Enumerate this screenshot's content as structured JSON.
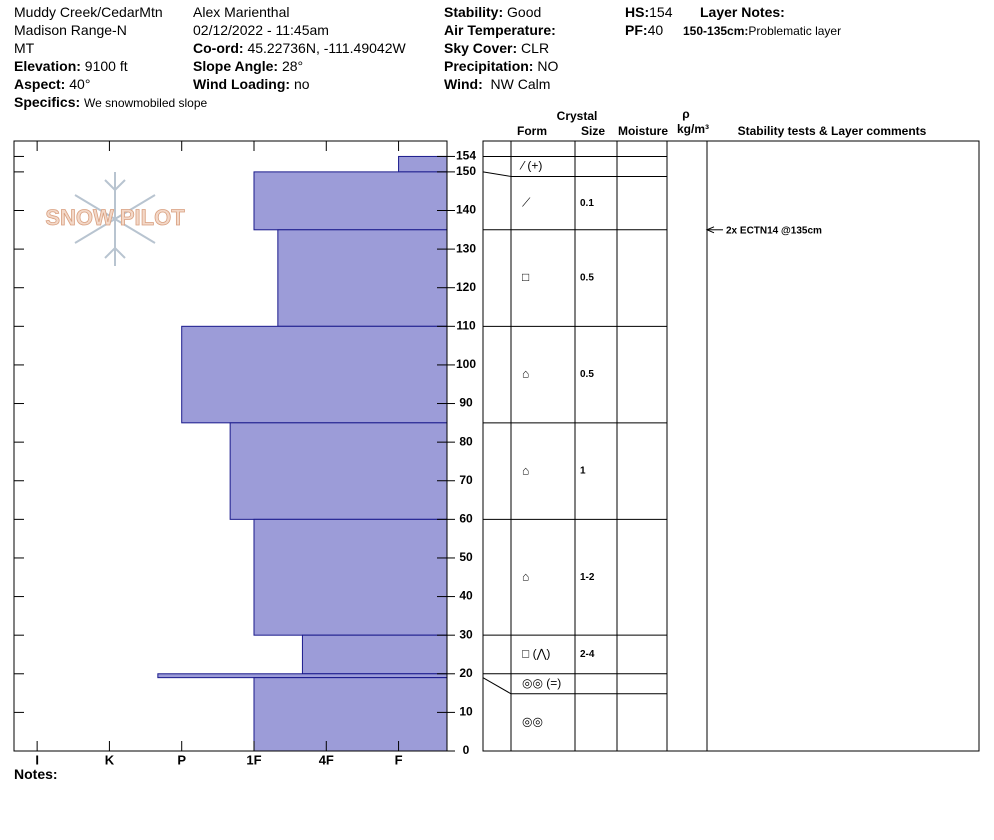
{
  "header": {
    "location": "Muddy Creek/CedarMtn",
    "range": "Madison Range-N",
    "state": "MT",
    "elevation": {
      "label": "Elevation:",
      "value": "9100 ft"
    },
    "aspect": {
      "label": "Aspect:",
      "value": "40°"
    },
    "specifics": {
      "label": "Specifics:",
      "value": "We snowmobiled slope"
    },
    "observer": "Alex Marienthal",
    "datetime": "02/12/2022 - 11:45am",
    "coord": {
      "label": "Co-ord:",
      "value": "45.22736N, -111.49042W"
    },
    "slope_angle": {
      "label": "Slope Angle:",
      "value": "28°"
    },
    "wind_loading": {
      "label": "Wind Loading:",
      "value": "no"
    },
    "stability": {
      "label": "Stability:",
      "value": "Good"
    },
    "air_temperature": {
      "label": "Air Temperature:"
    },
    "sky_cover": {
      "label": "Sky Cover:",
      "value": "CLR"
    },
    "precipitation": {
      "label": "Precipitation:",
      "value": "NO"
    },
    "wind": {
      "label": "Wind:",
      "value": "NW Calm"
    },
    "hs": {
      "label": "HS:",
      "value": "154"
    },
    "pf": {
      "label": "PF:",
      "value": "40"
    },
    "layer_notes": {
      "label": "Layer Notes:",
      "range": "150-135cm:",
      "text": "Problematic layer"
    }
  },
  "logo": "SNOW PILOT",
  "notes_label": "Notes:",
  "chart_data": {
    "type": "bar",
    "color": "#9c9cd8",
    "edge_color": "#1a1a8c",
    "xlim": [
      6.32,
      0.33
    ],
    "xticks": [
      {
        "value": 6,
        "label": "I"
      },
      {
        "value": 5,
        "label": "K"
      },
      {
        "value": 4,
        "label": "P"
      },
      {
        "value": 3,
        "label": "1F"
      },
      {
        "value": 2,
        "label": "4F"
      },
      {
        "value": 1,
        "label": "F"
      }
    ],
    "ylim": [
      0,
      158
    ],
    "yticks": [
      0,
      10,
      20,
      30,
      40,
      50,
      60,
      70,
      80,
      90,
      100,
      110,
      120,
      130,
      140,
      150,
      154
    ],
    "columns": {
      "crystal": "Crystal",
      "form": "Form",
      "size": "Size",
      "moisture": "Moisture",
      "rho": "ρ",
      "density": "kg/m³",
      "comments": "Stability tests & Layer comments"
    },
    "layers": [
      {
        "top": 154,
        "bottom": 150,
        "hardness": 1,
        "form": "⁄ (+)"
      },
      {
        "top": 150,
        "bottom": 135,
        "hardness": 3,
        "form": "⟋",
        "size": "0.1"
      },
      {
        "top": 135,
        "bottom": 110,
        "hardness": 2.67,
        "form": "□",
        "size": "0.5"
      },
      {
        "top": 110,
        "bottom": 85,
        "hardness": 4,
        "form": "⌂",
        "size": "0.5"
      },
      {
        "top": 85,
        "bottom": 60,
        "hardness": 3.33,
        "form": "⌂",
        "size": "1"
      },
      {
        "top": 60,
        "bottom": 30,
        "hardness": 3,
        "form": "⌂",
        "size": "1-2"
      },
      {
        "top": 30,
        "bottom": 20,
        "hardness": 2.33,
        "form": "□ (⋀)",
        "size": "2-4"
      },
      {
        "top": 20,
        "bottom": 19,
        "hardness": 4.33,
        "form": "◎◎ (=)"
      },
      {
        "top": 19,
        "bottom": 0,
        "hardness": 3,
        "form": "◎◎"
      }
    ],
    "comments": [
      {
        "depth": 135,
        "text": "2x ECTN14 @135cm"
      }
    ]
  }
}
